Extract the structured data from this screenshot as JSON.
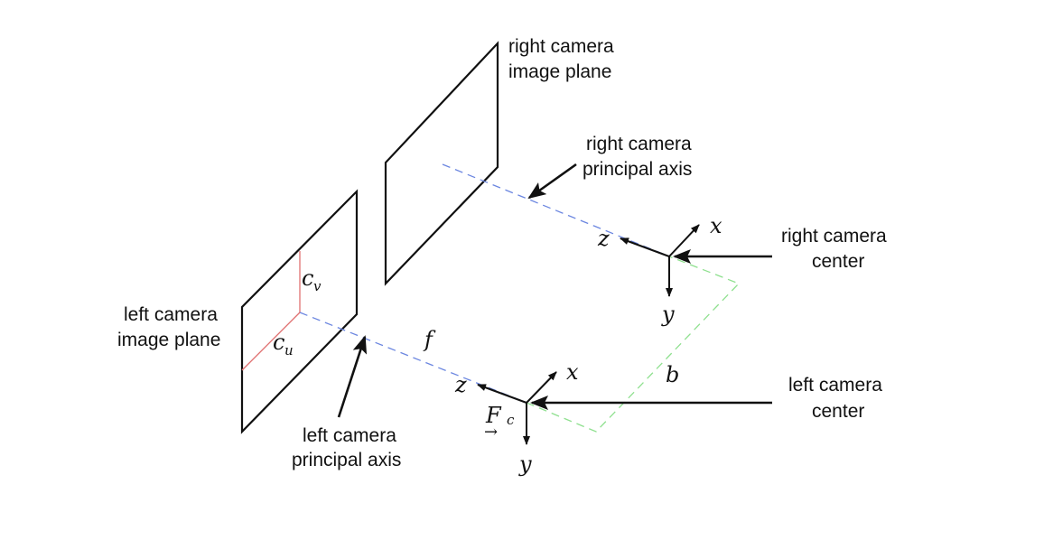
{
  "diagram": {
    "labels": {
      "right_plane_line1": "right camera",
      "right_plane_line2": "image plane",
      "right_axis_line1": "right camera",
      "right_axis_line2": "principal axis",
      "right_center_line1": "right camera",
      "right_center_line2": "center",
      "left_plane_line1": "left camera",
      "left_plane_line2": "image plane",
      "left_axis_line1": "left camera",
      "left_axis_line2": "principal axis",
      "left_center_line1": "left camera",
      "left_center_line2": "center"
    },
    "symbols": {
      "right_x": "x",
      "right_y": "y",
      "right_z": "z",
      "left_x": "x",
      "left_y": "y",
      "left_z": "z",
      "focal": "f",
      "baseline": "b",
      "cv_main": "c",
      "cv_sub": "v",
      "cu_main": "c",
      "cu_sub": "u",
      "frame_main": "F",
      "frame_sub": "c",
      "frame_arrow": "→"
    },
    "colors": {
      "principal_axis": "#6b86e0",
      "baseline": "#8fe08f",
      "principal_point_offsets": "#e07070",
      "strokes": "#111111"
    }
  }
}
